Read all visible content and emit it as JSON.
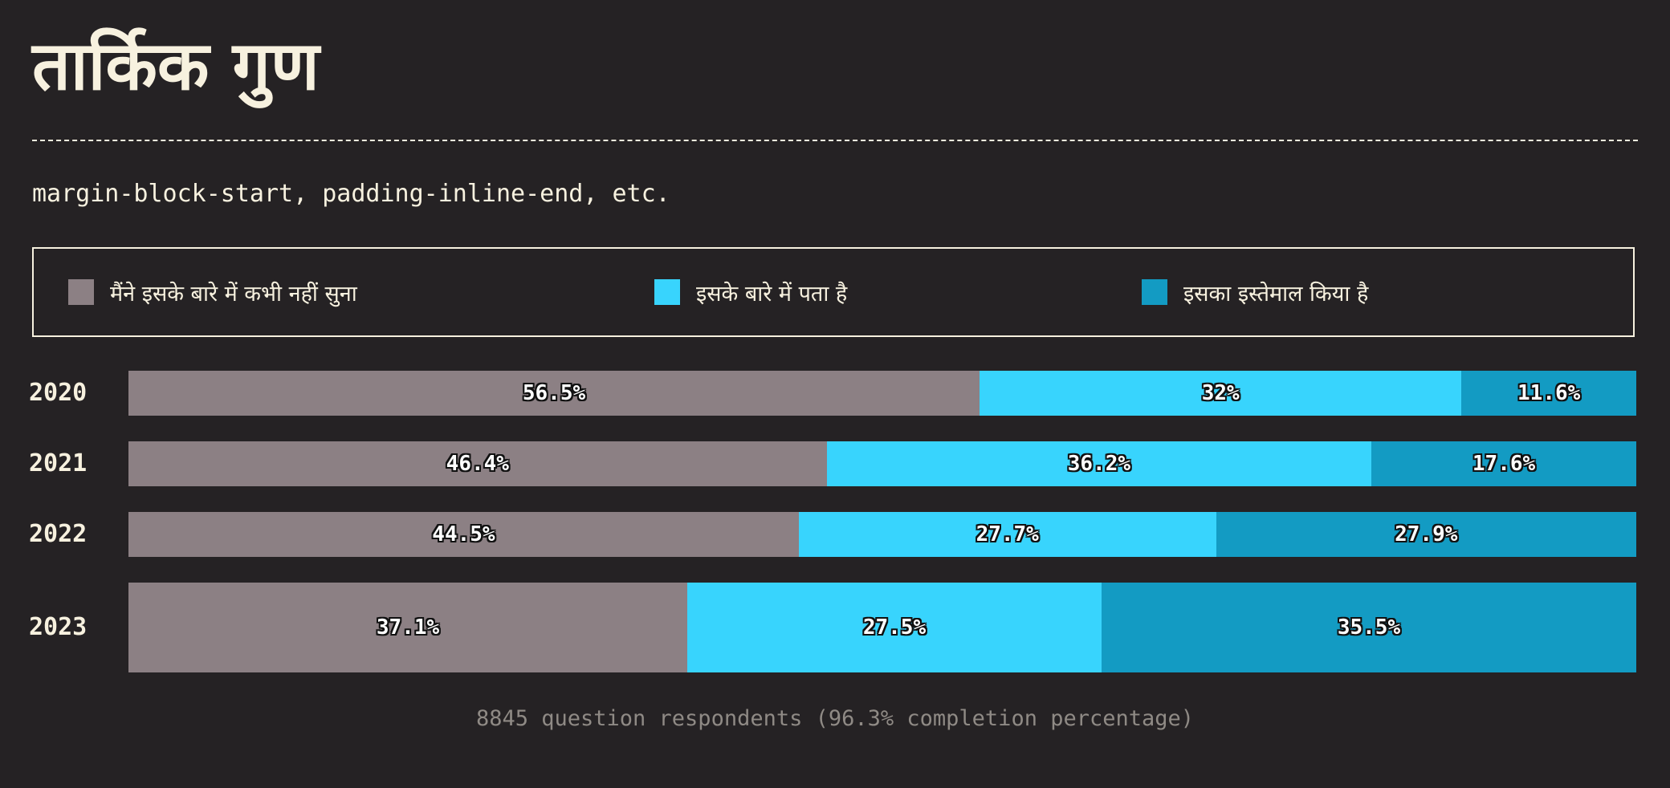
{
  "title": "तार्किक गुण",
  "subtitle": "margin-block-start, padding-inline-end, etc.",
  "footnote": "8845 question respondents (96.3% completion percentage)",
  "colors": {
    "never_heard": "#8c8084",
    "know_about": "#38d4fd",
    "used": "#139bc3",
    "background": "#252224",
    "text": "#f7f1df"
  },
  "legend": [
    {
      "label": "मैंने इसके बारे में कभी नहीं सुना",
      "color": "#8c8084"
    },
    {
      "label": "इसके बारे में पता है",
      "color": "#38d4fd"
    },
    {
      "label": "इसका इस्तेमाल किया है",
      "color": "#139bc3"
    }
  ],
  "chart_data": {
    "type": "bar",
    "orientation": "horizontal-stacked-100",
    "categories": [
      "2020",
      "2021",
      "2022",
      "2023"
    ],
    "series": [
      {
        "name": "मैंने इसके बारे में कभी नहीं सुना",
        "values": [
          56.5,
          46.4,
          44.5,
          37.1
        ],
        "labels": [
          "56.5%",
          "46.4%",
          "44.5%",
          "37.1%"
        ]
      },
      {
        "name": "इसके बारे में पता है",
        "values": [
          32,
          36.2,
          27.7,
          27.5
        ],
        "labels": [
          "32%",
          "36.2%",
          "27.7%",
          "27.5%"
        ]
      },
      {
        "name": "इसका इस्तेमाल किया है",
        "values": [
          11.6,
          17.6,
          27.9,
          35.5
        ],
        "labels": [
          "11.6%",
          "17.6%",
          "27.9%",
          "35.5%"
        ]
      }
    ],
    "legend_position": "top"
  }
}
